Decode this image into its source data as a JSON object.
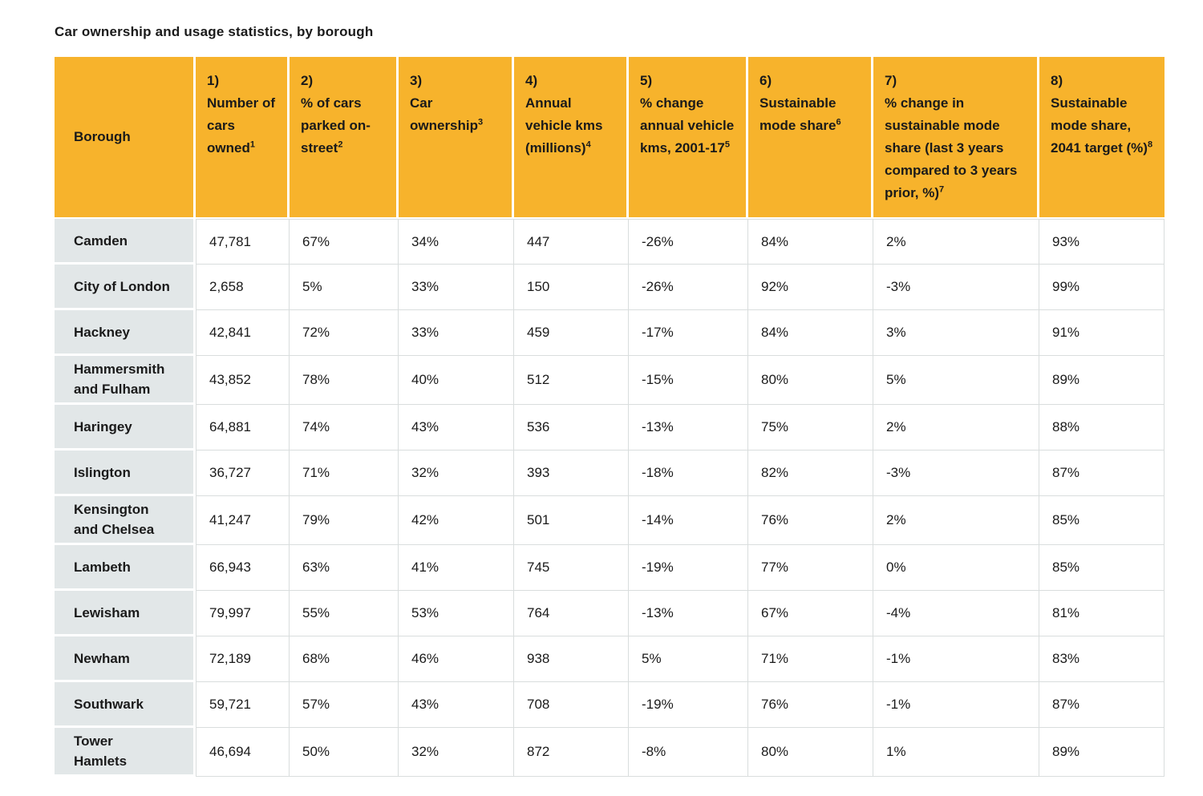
{
  "title": "Car ownership and usage statistics, by borough",
  "colors": {
    "header_bg": "#F7B32C",
    "row_label_bg": "#E2E7E8",
    "grid_line": "#D9DDDD",
    "text": "#1A1A1A"
  },
  "table": {
    "columns": [
      {
        "num": "",
        "label": "Borough",
        "sup": ""
      },
      {
        "num": "1)",
        "label": "Number of cars owned",
        "sup": "1"
      },
      {
        "num": "2)",
        "label": "% of cars parked on-street",
        "sup": "2"
      },
      {
        "num": "3)",
        "label": "Car ownership",
        "sup": "3"
      },
      {
        "num": "4)",
        "label": "Annual vehicle kms (millions)",
        "sup": "4"
      },
      {
        "num": "5)",
        "label": "% change annual vehicle kms, 2001-17",
        "sup": "5"
      },
      {
        "num": "6)",
        "label": "Sustainable mode share",
        "sup": "6"
      },
      {
        "num": "7)",
        "label": "% change in sustainable mode share (last 3 years compared to 3 years prior, %)",
        "sup": "7"
      },
      {
        "num": "8)",
        "label": "Sustainable mode share, 2041 target (%)",
        "sup": "8"
      }
    ],
    "rows": [
      {
        "borough": "Camden",
        "values": [
          "47,781",
          "67%",
          "34%",
          "447",
          "-26%",
          "84%",
          "2%",
          "93%"
        ]
      },
      {
        "borough": "City of London",
        "values": [
          "2,658",
          "5%",
          "33%",
          "150",
          "-26%",
          "92%",
          "-3%",
          "99%"
        ]
      },
      {
        "borough": "Hackney",
        "values": [
          "42,841",
          "72%",
          "33%",
          "459",
          "-17%",
          "84%",
          "3%",
          "91%"
        ]
      },
      {
        "borough": "Hammersmith\nand Fulham",
        "values": [
          "43,852",
          "78%",
          "40%",
          "512",
          "-15%",
          "80%",
          "5%",
          "89%"
        ]
      },
      {
        "borough": "Haringey",
        "values": [
          "64,881",
          "74%",
          "43%",
          "536",
          "-13%",
          "75%",
          "2%",
          "88%"
        ]
      },
      {
        "borough": "Islington",
        "values": [
          "36,727",
          "71%",
          "32%",
          "393",
          "-18%",
          "82%",
          "-3%",
          "87%"
        ]
      },
      {
        "borough": "Kensington\nand Chelsea",
        "values": [
          "41,247",
          "79%",
          "42%",
          "501",
          "-14%",
          "76%",
          "2%",
          "85%"
        ]
      },
      {
        "borough": "Lambeth",
        "values": [
          "66,943",
          "63%",
          "41%",
          "745",
          "-19%",
          "77%",
          "0%",
          "85%"
        ]
      },
      {
        "borough": "Lewisham",
        "values": [
          "79,997",
          "55%",
          "53%",
          "764",
          "-13%",
          "67%",
          "-4%",
          "81%"
        ]
      },
      {
        "borough": "Newham",
        "values": [
          "72,189",
          "68%",
          "46%",
          "938",
          "5%",
          "71%",
          "-1%",
          "83%"
        ]
      },
      {
        "borough": "Southwark",
        "values": [
          "59,721",
          "57%",
          "43%",
          "708",
          "-19%",
          "76%",
          "-1%",
          "87%"
        ]
      },
      {
        "borough": "Tower\nHamlets",
        "values": [
          "46,694",
          "50%",
          "32%",
          "872",
          "-8%",
          "80%",
          "1%",
          "89%"
        ]
      }
    ]
  }
}
